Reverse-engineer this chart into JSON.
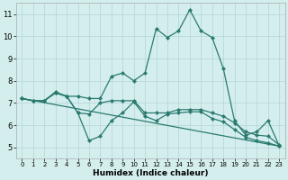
{
  "line1_x": [
    0,
    1,
    2,
    3,
    4,
    5,
    6,
    7,
    8,
    9,
    10,
    11,
    12,
    13,
    14,
    15,
    16,
    17,
    18,
    19,
    20,
    21,
    22,
    23
  ],
  "line1_y": [
    7.2,
    7.1,
    7.1,
    7.5,
    7.3,
    7.3,
    7.2,
    7.2,
    8.2,
    8.35,
    8.0,
    8.35,
    10.35,
    9.95,
    10.25,
    11.2,
    10.25,
    9.95,
    8.55,
    6.2,
    5.55,
    5.7,
    6.2,
    5.05
  ],
  "line2_x": [
    0,
    1,
    2,
    3,
    4,
    5,
    6,
    7,
    8,
    9,
    10,
    11,
    12,
    13,
    14,
    15,
    16,
    17,
    18,
    19,
    20,
    21,
    22,
    23
  ],
  "line2_y": [
    7.2,
    7.1,
    7.1,
    7.45,
    7.3,
    6.55,
    6.5,
    7.0,
    7.1,
    7.1,
    7.1,
    6.55,
    6.55,
    6.55,
    6.7,
    6.7,
    6.7,
    6.55,
    6.4,
    6.1,
    5.7,
    5.55,
    5.5,
    5.1
  ],
  "line3_x": [
    0,
    1,
    2,
    3,
    4,
    5,
    6,
    7,
    8,
    9,
    10,
    11,
    12,
    13,
    14,
    15,
    16,
    17,
    18,
    19,
    20,
    21,
    22,
    23
  ],
  "line3_y": [
    7.2,
    7.1,
    7.1,
    7.45,
    7.3,
    6.55,
    5.3,
    5.5,
    6.2,
    6.55,
    7.05,
    6.4,
    6.2,
    6.5,
    6.55,
    6.6,
    6.6,
    6.3,
    6.15,
    5.8,
    5.45,
    5.3,
    5.2,
    5.05
  ],
  "line4_x": [
    0,
    23
  ],
  "line4_y": [
    7.2,
    5.05
  ],
  "color": "#2a7a6e",
  "bg_color": "#d4eeee",
  "grid_color": "#b8d8d8",
  "xlabel": "Humidex (Indice chaleur)",
  "xlim": [
    -0.5,
    23.5
  ],
  "ylim": [
    4.5,
    11.5
  ],
  "yticks": [
    5,
    6,
    7,
    8,
    9,
    10,
    11
  ],
  "xticks": [
    0,
    1,
    2,
    3,
    4,
    5,
    6,
    7,
    8,
    9,
    10,
    11,
    12,
    13,
    14,
    15,
    16,
    17,
    18,
    19,
    20,
    21,
    22,
    23
  ],
  "fig_width": 3.2,
  "fig_height": 2.0,
  "dpi": 100
}
